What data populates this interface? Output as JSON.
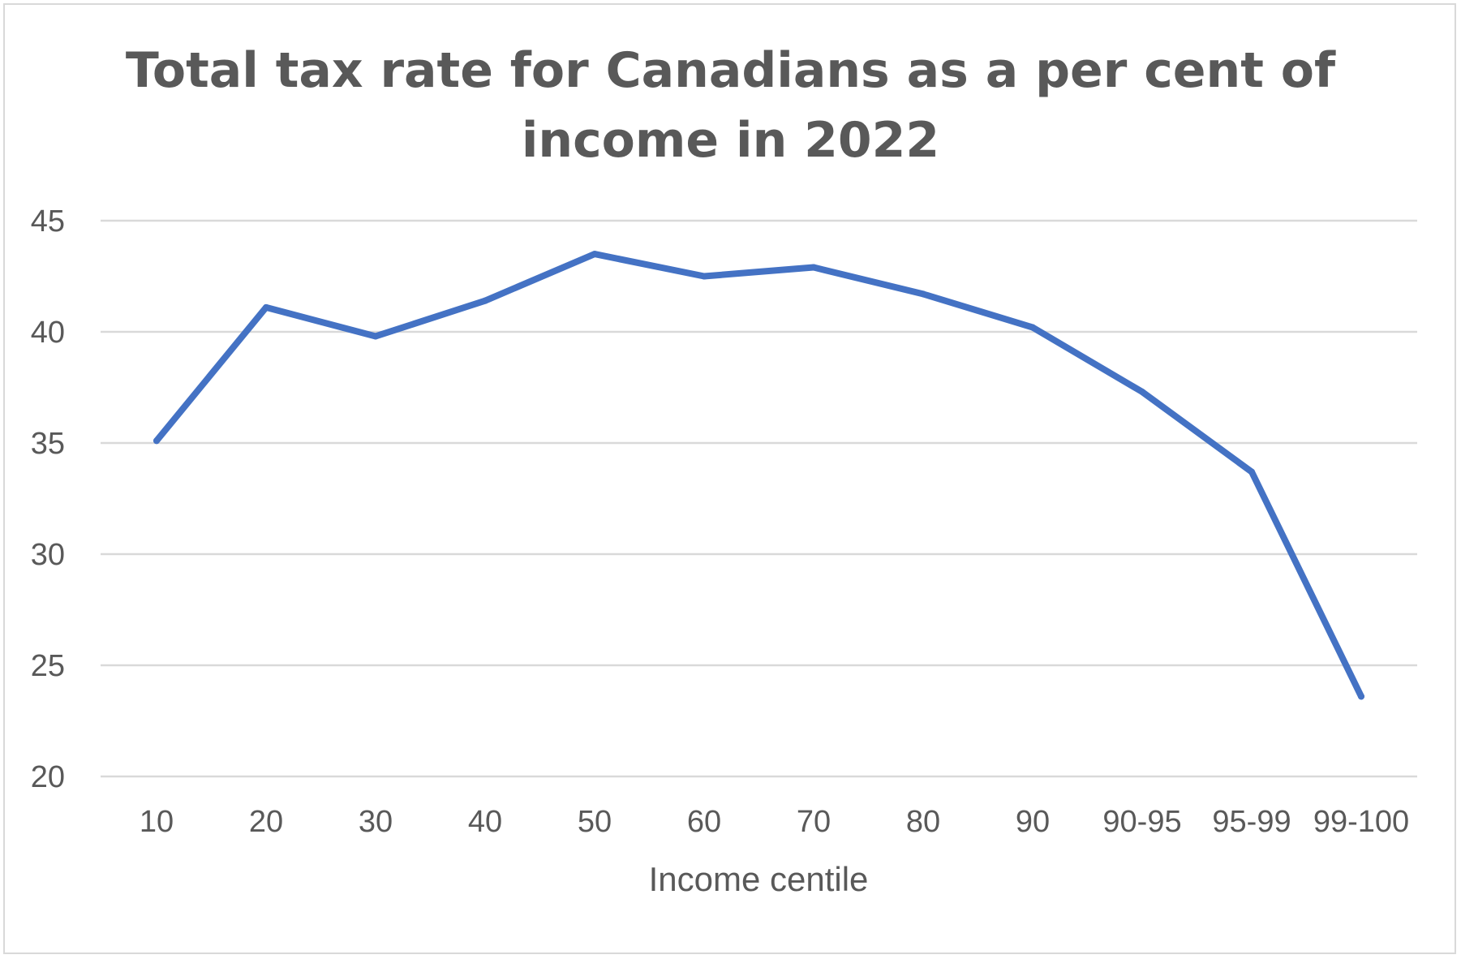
{
  "chart_data": {
    "type": "line",
    "title_lines": [
      "Total tax rate for Canadians as a per cent of",
      "income in 2022"
    ],
    "xlabel": "Income centile",
    "ylabel": "",
    "categories": [
      "10",
      "20",
      "30",
      "40",
      "50",
      "60",
      "70",
      "80",
      "90",
      "90-95",
      "95-99",
      "99-100"
    ],
    "series": [
      {
        "name": "Total tax rate",
        "values": [
          35.1,
          41.1,
          39.8,
          41.4,
          43.5,
          42.5,
          42.9,
          41.7,
          40.2,
          37.3,
          33.7,
          23.6
        ],
        "color": "#4472C4"
      }
    ],
    "ylim": [
      20,
      45
    ],
    "yticks": [
      "20",
      "25",
      "30",
      "35",
      "40",
      "45"
    ],
    "grid": true,
    "legend": "none",
    "colors": {
      "line": "#4472C4",
      "grid": "#d9d9d9",
      "text": "#595959"
    }
  }
}
